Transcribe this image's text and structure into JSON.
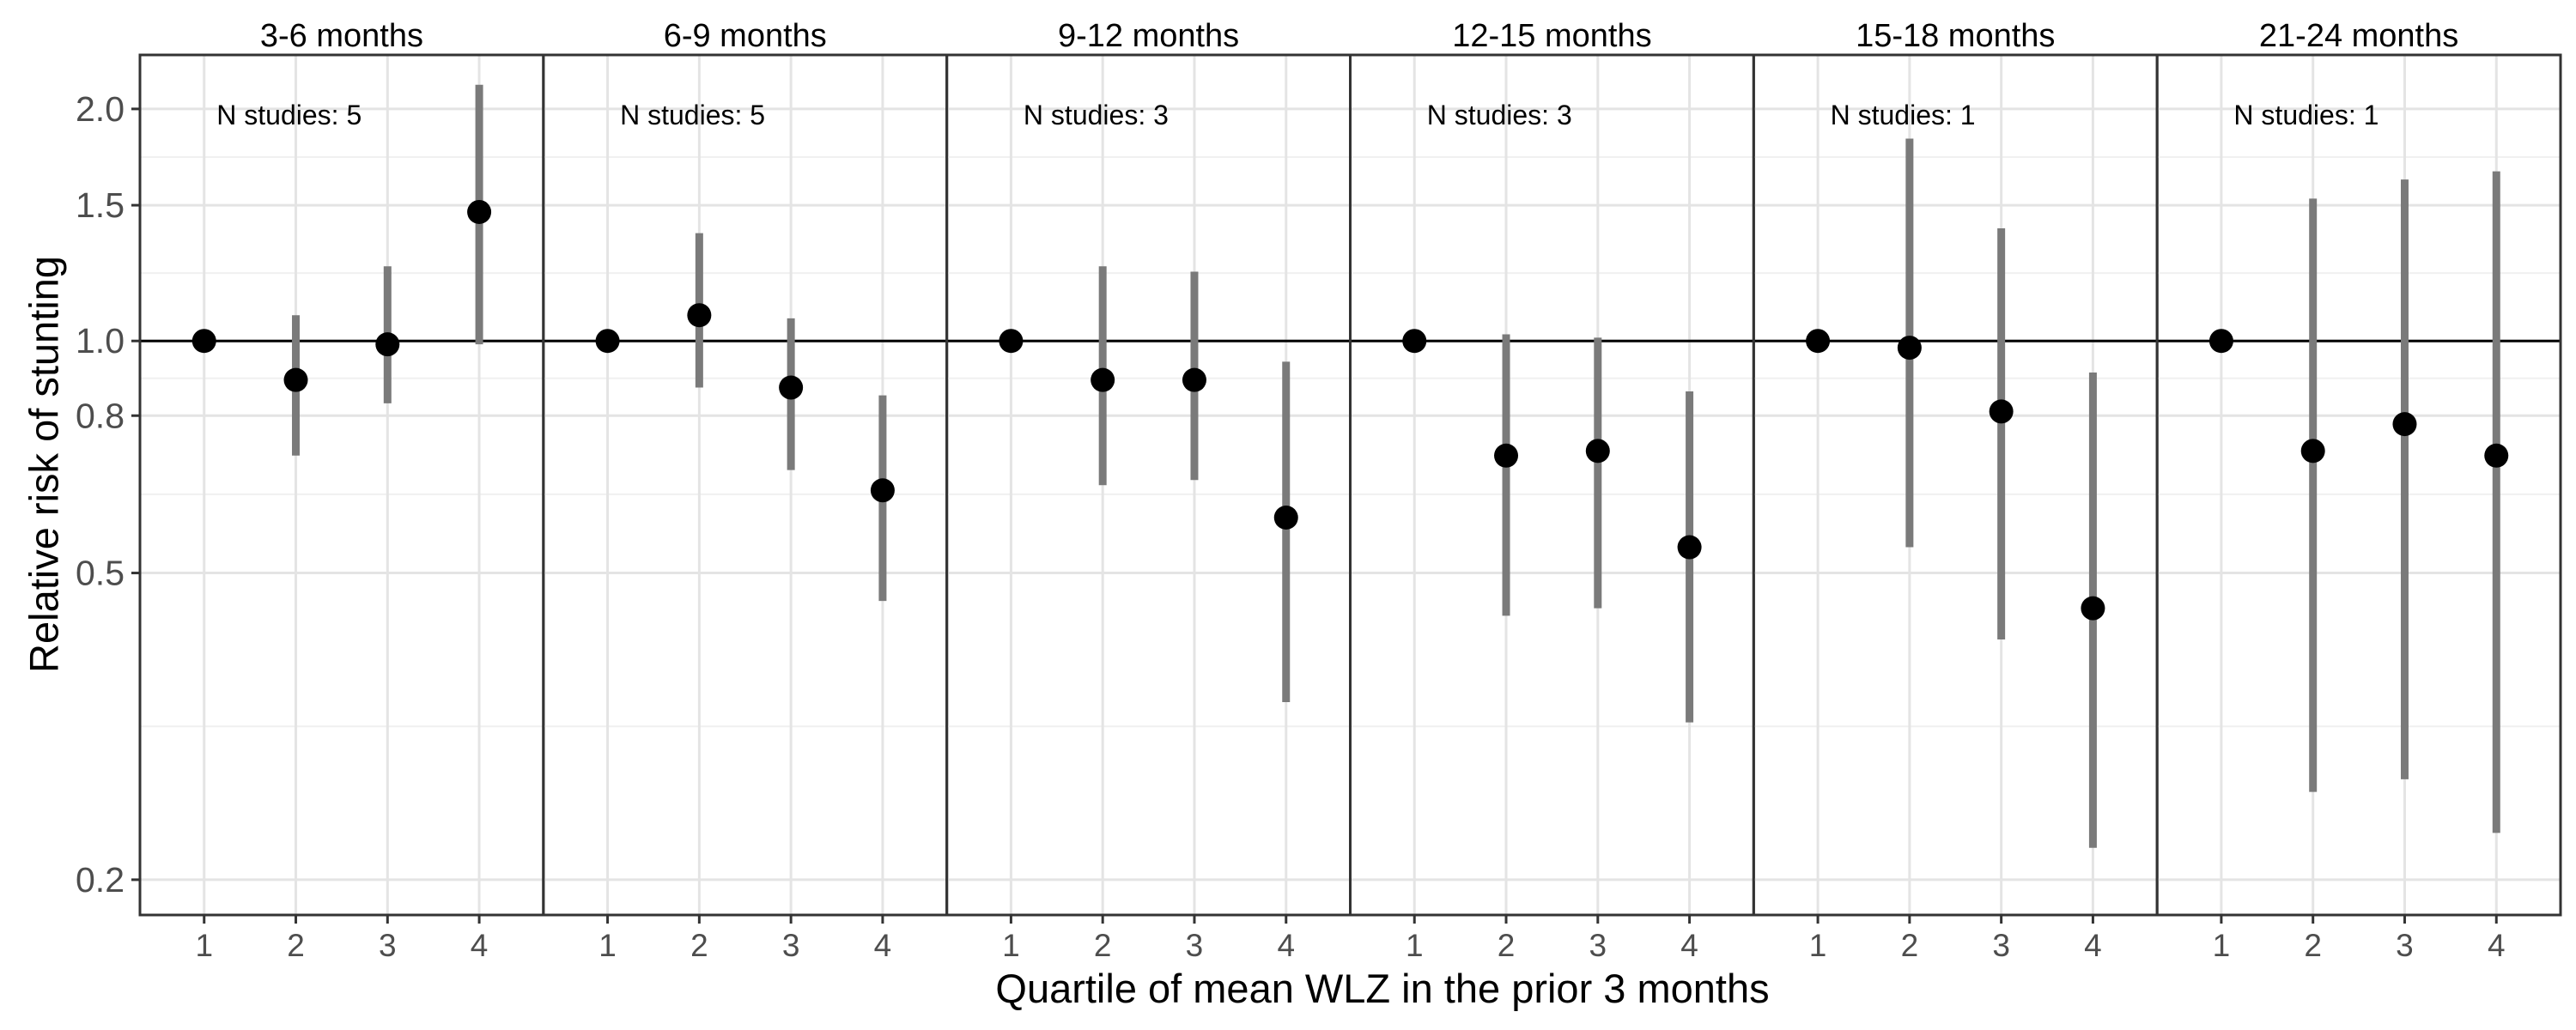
{
  "chart_data": {
    "type": "scatter",
    "subtype": "point-range with 95% CI, faceted",
    "ylabel": "Relative risk of stunting",
    "xlabel": "Quartile of mean WLZ in the prior 3 months",
    "y_scale": "log",
    "ylim": [
      0.18,
      2.35
    ],
    "y_ticks": [
      "0.2",
      "0.5",
      "0.8",
      "1.0",
      "1.5",
      "2.0"
    ],
    "x_categories": [
      "1",
      "2",
      "3",
      "4"
    ],
    "reference_line_y": 1.0,
    "grid": true,
    "legend": "none",
    "point_color": "#000000",
    "ci_color": "#7a7a7a",
    "panels": [
      {
        "label": "3-6 months",
        "annotation": "N studies: 5",
        "estimates": [
          1.0,
          0.89,
          0.99,
          1.47
        ],
        "lower": [
          null,
          0.71,
          0.83,
          0.99
        ],
        "upper": [
          null,
          1.08,
          1.25,
          2.15
        ]
      },
      {
        "label": "6-9 months",
        "annotation": "N studies: 5",
        "estimates": [
          1.0,
          1.08,
          0.87,
          0.64
        ],
        "lower": [
          null,
          0.87,
          0.68,
          0.46
        ],
        "upper": [
          null,
          1.38,
          1.07,
          0.85
        ]
      },
      {
        "label": "9-12 months",
        "annotation": "N studies: 3",
        "estimates": [
          1.0,
          0.89,
          0.89,
          0.59
        ],
        "lower": [
          null,
          0.65,
          0.66,
          0.34
        ],
        "upper": [
          null,
          1.25,
          1.23,
          0.94
        ]
      },
      {
        "label": "12-15 months",
        "annotation": "N studies: 3",
        "estimates": [
          1.0,
          0.71,
          0.72,
          0.54
        ],
        "lower": [
          null,
          0.44,
          0.45,
          0.32
        ],
        "upper": [
          null,
          1.02,
          1.01,
          0.86
        ]
      },
      {
        "label": "15-18 months",
        "annotation": "N studies: 1",
        "estimates": [
          1.0,
          0.98,
          0.81,
          0.45
        ],
        "lower": [
          null,
          0.54,
          0.41,
          0.22
        ],
        "upper": [
          null,
          1.83,
          1.4,
          0.91
        ]
      },
      {
        "label": "21-24 months",
        "annotation": "N studies: 1",
        "estimates": [
          1.0,
          0.72,
          0.78,
          0.71
        ],
        "lower": [
          null,
          0.26,
          0.27,
          0.23
        ],
        "upper": [
          null,
          1.53,
          1.62,
          1.66
        ]
      }
    ]
  }
}
